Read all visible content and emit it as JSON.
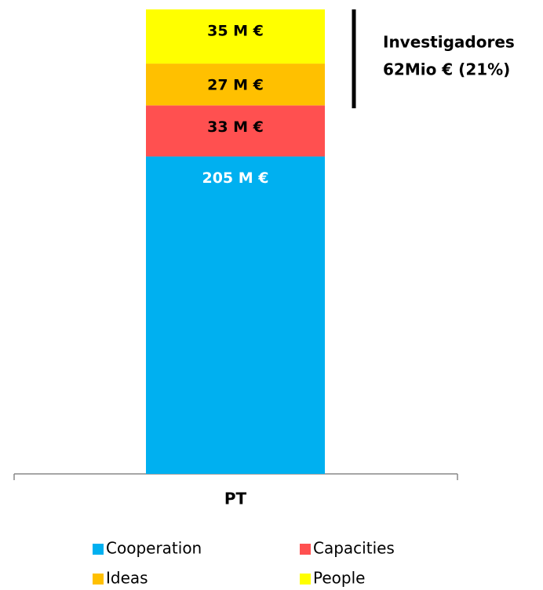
{
  "chart_data": {
    "type": "stacked_bar",
    "categories": [
      "PT"
    ],
    "series": [
      {
        "name": "Cooperation",
        "color": "#00b0f0",
        "values": [
          205
        ],
        "value_labels": [
          "205 M €"
        ],
        "label_color": "#ffffff"
      },
      {
        "name": "Capacities",
        "color": "#ff5050",
        "values": [
          33
        ],
        "value_labels": [
          "33 M €"
        ],
        "label_color": "#000000"
      },
      {
        "name": "Ideas",
        "color": "#ffc000",
        "values": [
          27
        ],
        "value_labels": [
          "27 M €"
        ],
        "label_color": "#000000"
      },
      {
        "name": "People",
        "color": "#ffff00",
        "values": [
          35
        ],
        "value_labels": [
          "35 M €"
        ],
        "label_color": "#000000"
      }
    ],
    "annotations": [
      "Investigadores",
      "62Mio € (21%)"
    ]
  }
}
